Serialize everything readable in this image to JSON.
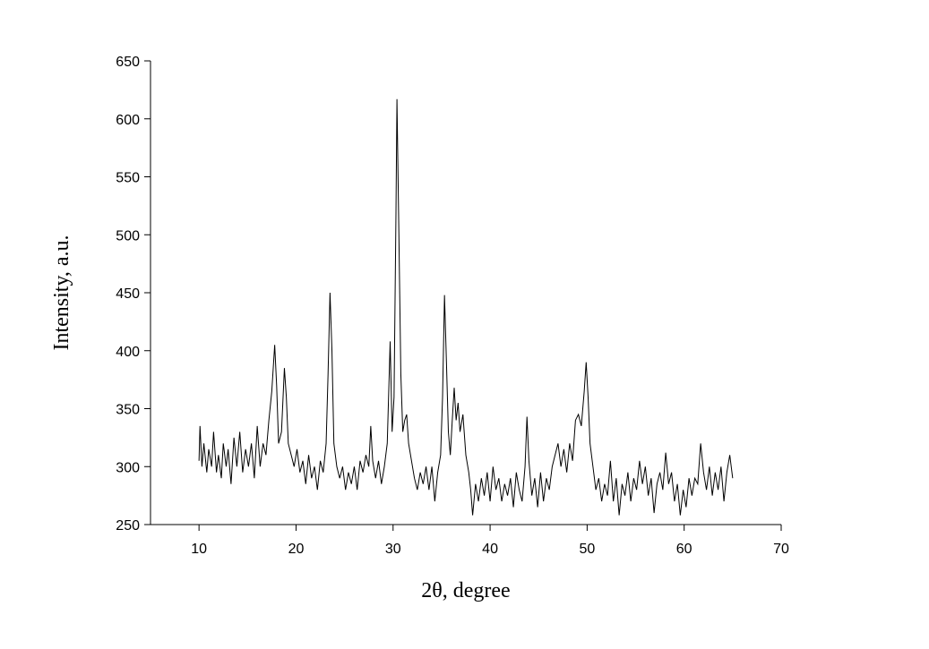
{
  "chart_data": {
    "type": "line",
    "x_label": "2θ, degree",
    "y_label": "Intensity, a.u.",
    "xlim": [
      5,
      70
    ],
    "xticks": [
      10,
      20,
      30,
      40,
      50,
      60,
      70
    ],
    "ylim": [
      250,
      650
    ],
    "yticks": [
      250,
      300,
      350,
      400,
      450,
      500,
      550,
      600,
      650
    ],
    "series": [
      {
        "color": "#000000",
        "x": [
          10.0,
          10.1,
          10.3,
          10.5,
          10.8,
          11.0,
          11.3,
          11.5,
          11.8,
          12.0,
          12.3,
          12.5,
          12.8,
          13.0,
          13.3,
          13.6,
          13.9,
          14.2,
          14.5,
          14.8,
          15.1,
          15.4,
          15.7,
          16.0,
          16.3,
          16.6,
          16.9,
          17.2,
          17.5,
          17.8,
          18.0,
          18.2,
          18.5,
          18.8,
          19.0,
          19.2,
          19.5,
          19.8,
          20.1,
          20.4,
          20.7,
          21.0,
          21.3,
          21.6,
          21.9,
          22.2,
          22.5,
          22.8,
          23.1,
          23.3,
          23.5,
          23.7,
          23.9,
          24.2,
          24.5,
          24.8,
          25.1,
          25.4,
          25.7,
          26.0,
          26.3,
          26.6,
          26.9,
          27.2,
          27.5,
          27.7,
          27.9,
          28.2,
          28.5,
          28.8,
          29.1,
          29.4,
          29.7,
          29.9,
          30.1,
          30.3,
          30.4,
          30.6,
          30.8,
          31.0,
          31.2,
          31.4,
          31.6,
          31.9,
          32.2,
          32.5,
          32.8,
          33.1,
          33.4,
          33.7,
          34.0,
          34.3,
          34.6,
          34.9,
          35.1,
          35.3,
          35.5,
          35.7,
          35.9,
          36.1,
          36.3,
          36.5,
          36.7,
          36.9,
          37.2,
          37.5,
          37.8,
          38.0,
          38.2,
          38.5,
          38.8,
          39.1,
          39.4,
          39.7,
          40.0,
          40.3,
          40.6,
          40.9,
          41.2,
          41.5,
          41.8,
          42.1,
          42.4,
          42.7,
          43.0,
          43.3,
          43.6,
          43.8,
          44.0,
          44.3,
          44.6,
          44.9,
          45.2,
          45.5,
          45.8,
          46.1,
          46.4,
          46.7,
          47.0,
          47.3,
          47.6,
          47.9,
          48.2,
          48.5,
          48.8,
          49.1,
          49.4,
          49.7,
          49.9,
          50.1,
          50.3,
          50.6,
          50.9,
          51.2,
          51.5,
          51.8,
          52.1,
          52.4,
          52.7,
          53.0,
          53.3,
          53.6,
          53.9,
          54.2,
          54.5,
          54.8,
          55.1,
          55.4,
          55.7,
          56.0,
          56.3,
          56.6,
          56.9,
          57.2,
          57.5,
          57.8,
          58.1,
          58.4,
          58.7,
          59.0,
          59.3,
          59.6,
          59.9,
          60.2,
          60.5,
          60.8,
          61.1,
          61.4,
          61.7,
          62.0,
          62.3,
          62.6,
          62.9,
          63.2,
          63.5,
          63.8,
          64.1,
          64.4,
          64.7,
          65.0
        ],
        "values": [
          305,
          335,
          300,
          320,
          295,
          315,
          300,
          330,
          295,
          310,
          290,
          320,
          300,
          315,
          285,
          325,
          300,
          330,
          295,
          315,
          300,
          320,
          290,
          335,
          300,
          320,
          310,
          340,
          365,
          405,
          370,
          320,
          330,
          385,
          360,
          320,
          310,
          300,
          315,
          295,
          305,
          285,
          310,
          290,
          300,
          280,
          305,
          295,
          320,
          380,
          450,
          400,
          320,
          300,
          290,
          300,
          280,
          295,
          285,
          300,
          280,
          305,
          295,
          310,
          300,
          335,
          305,
          290,
          305,
          285,
          300,
          320,
          408,
          330,
          360,
          520,
          617,
          500,
          380,
          330,
          340,
          345,
          320,
          305,
          290,
          280,
          295,
          285,
          300,
          280,
          300,
          270,
          295,
          310,
          360,
          448,
          390,
          330,
          310,
          340,
          368,
          340,
          355,
          330,
          345,
          310,
          295,
          280,
          258,
          285,
          270,
          290,
          275,
          295,
          270,
          300,
          280,
          290,
          270,
          285,
          275,
          290,
          265,
          295,
          280,
          270,
          300,
          343,
          305,
          275,
          290,
          265,
          295,
          270,
          290,
          280,
          300,
          310,
          320,
          300,
          315,
          295,
          320,
          305,
          340,
          345,
          335,
          365,
          390,
          360,
          320,
          300,
          280,
          290,
          270,
          285,
          275,
          305,
          270,
          290,
          258,
          285,
          275,
          295,
          270,
          290,
          280,
          305,
          285,
          300,
          275,
          290,
          260,
          285,
          295,
          280,
          312,
          285,
          295,
          270,
          285,
          258,
          280,
          265,
          290,
          275,
          290,
          285,
          320,
          295,
          280,
          300,
          275,
          295,
          280,
          300,
          270,
          295,
          310,
          290
        ]
      }
    ]
  }
}
